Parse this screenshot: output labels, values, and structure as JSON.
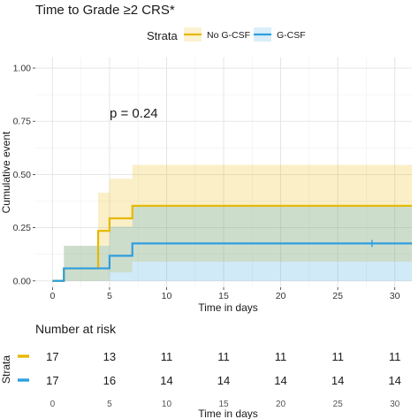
{
  "chart_data": {
    "type": "line",
    "title": "Time to Grade ≥2 CRS*",
    "xlabel": "Time in days",
    "ylabel": "Cumulative event",
    "xlim": [
      -1.5,
      31.5
    ],
    "ylim": [
      -0.03,
      1.05
    ],
    "x_ticks": [
      0,
      5,
      10,
      15,
      20,
      25,
      30
    ],
    "y_ticks": [
      0,
      0.25,
      0.5,
      0.75,
      1.0
    ],
    "y_tick_labels": [
      "0.00",
      "0.25",
      "0.50",
      "0.75",
      "1.00"
    ],
    "grid": true,
    "legend": {
      "title": "Strata",
      "position": "top"
    },
    "annotation": "p = 0.24",
    "series": [
      {
        "name": "No G-CSF",
        "color": "#E7B800",
        "steps": [
          [
            0,
            0
          ],
          [
            1,
            0.059
          ],
          [
            4,
            0.235
          ],
          [
            5,
            0.294
          ],
          [
            7,
            0.353
          ]
        ],
        "x_end": 31.5,
        "ci_band": [
          {
            "x0": 1,
            "x1": 4,
            "lo": 0.0,
            "hi": 0.165
          },
          {
            "x0": 4,
            "x1": 5,
            "lo": 0.0,
            "hi": 0.415
          },
          {
            "x0": 5,
            "x1": 7,
            "lo": 0.04,
            "hi": 0.48
          },
          {
            "x0": 7,
            "x1": 31.5,
            "lo": 0.09,
            "hi": 0.545
          }
        ]
      },
      {
        "name": "G-CSF",
        "color": "#2E9FDF",
        "steps": [
          [
            0,
            0
          ],
          [
            1,
            0.059
          ],
          [
            5,
            0.118
          ],
          [
            7,
            0.176
          ]
        ],
        "x_end": 31.5,
        "censor": [
          28
        ],
        "ci_band": [
          {
            "x0": 1,
            "x1": 5,
            "lo": 0.0,
            "hi": 0.165
          },
          {
            "x0": 5,
            "x1": 7,
            "lo": 0.0,
            "hi": 0.255
          },
          {
            "x0": 7,
            "x1": 31.5,
            "lo": 0.0,
            "hi": 0.355
          }
        ]
      }
    ]
  },
  "risk_table": {
    "title": "Number at risk",
    "ylabel": "Strata",
    "xlabel": "Time in days",
    "times": [
      0,
      5,
      10,
      15,
      20,
      25,
      30
    ],
    "rows": [
      {
        "color": "#E7B800",
        "counts": [
          "17",
          "13",
          "11",
          "11",
          "11",
          "11",
          "11"
        ]
      },
      {
        "color": "#2E9FDF",
        "counts": [
          "17",
          "16",
          "14",
          "14",
          "14",
          "14",
          "14"
        ]
      }
    ]
  }
}
